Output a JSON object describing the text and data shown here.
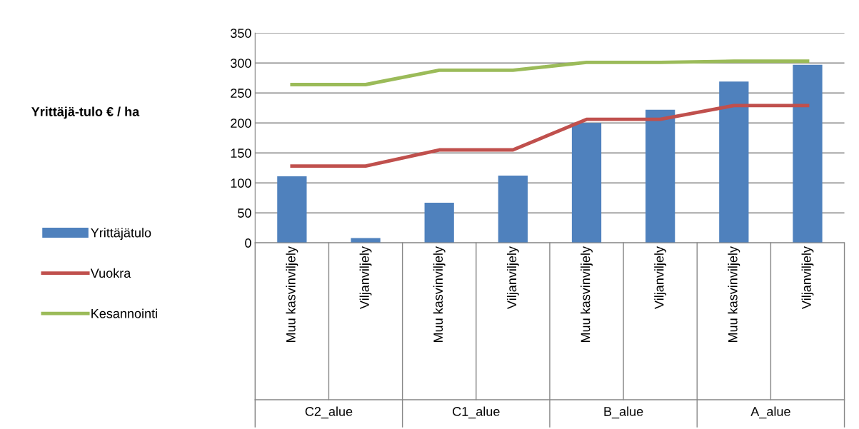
{
  "chart_data": {
    "type": "bar",
    "categories": [
      "Muu kasvinviljely",
      "Viljanviljely",
      "Muu kasvinviljely",
      "Viljanviljely",
      "Muu kasvinviljely",
      "Viljanviljely",
      "Muu kasvinviljely",
      "Viljanviljely"
    ],
    "series": [
      {
        "name": "Yrittäjätulo",
        "color": "#4f81bd",
        "values": [
          111,
          8,
          67,
          112,
          200,
          222,
          269,
          297
        ]
      },
      {
        "name": "Vuokra",
        "type": "line",
        "color": "#c0504d",
        "values": [
          128,
          128,
          155,
          155,
          206,
          206,
          229,
          229
        ]
      },
      {
        "name": "Kesannointi",
        "type": "line",
        "color": "#9bbb59",
        "values": [
          264,
          264,
          288,
          288,
          301,
          301,
          303,
          303
        ]
      }
    ],
    "annotations": [
      "Yrittäjä-tulo € / ha",
      "C2_alue",
      "C1_alue",
      "B_alue",
      "A_alue"
    ],
    "ylim": [
      0,
      350
    ],
    "yticks": [
      0,
      50,
      100,
      150,
      200,
      250,
      300,
      350
    ],
    "grid": "y",
    "legend": "left",
    "marker": "none",
    "line_style": "solid"
  }
}
